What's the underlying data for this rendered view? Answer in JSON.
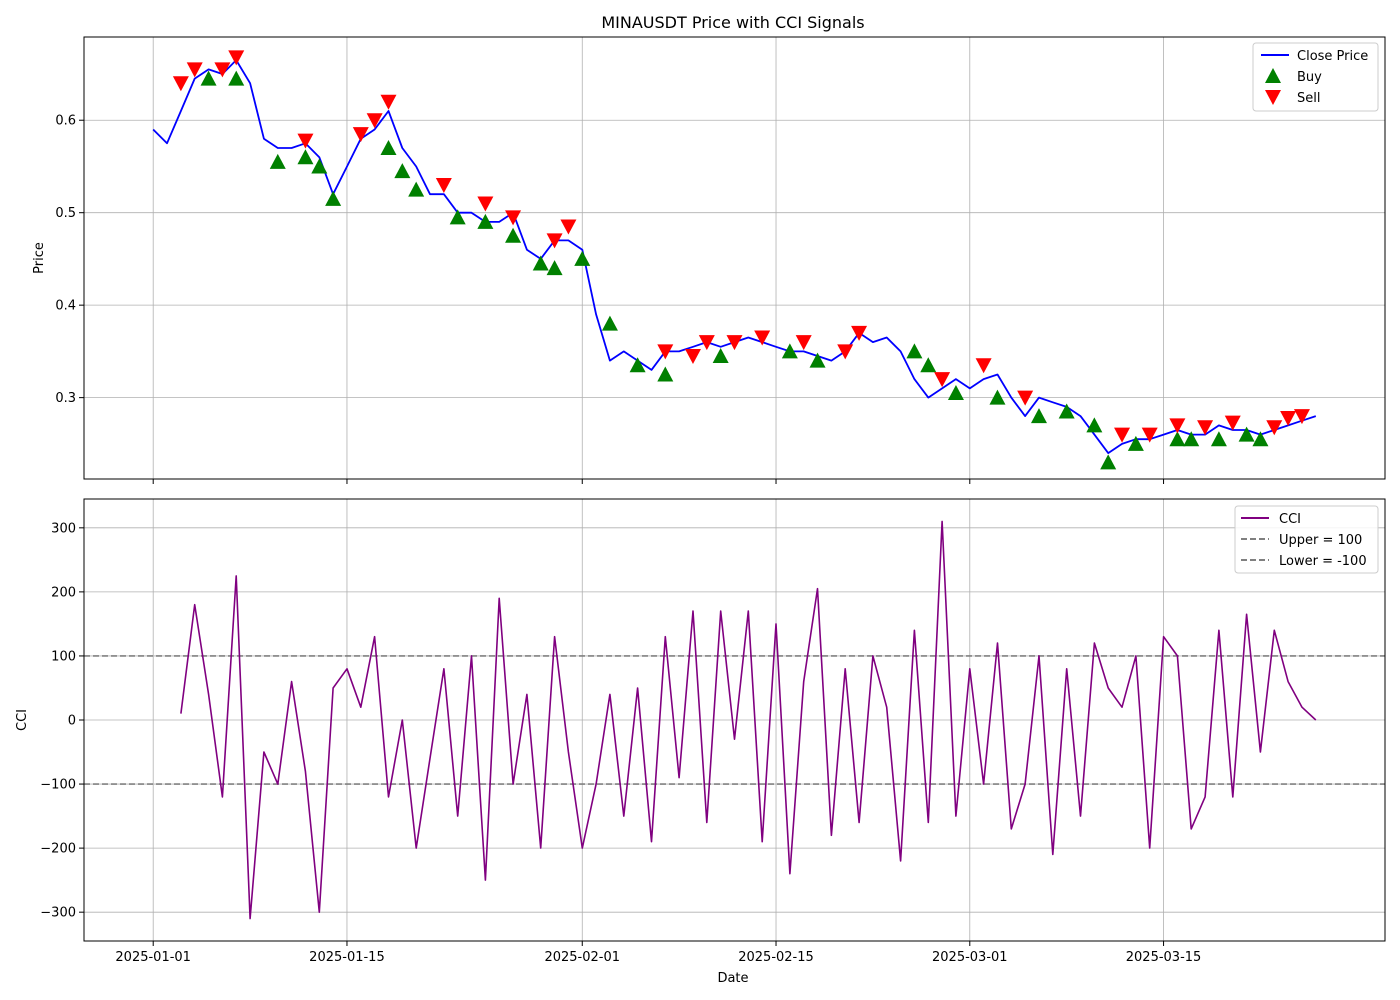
{
  "figure": {
    "title": "MINAUSDT Price with CCI Signals",
    "xlabel": "Date"
  },
  "colors": {
    "price": "#0000ff",
    "buy": "#008000",
    "sell": "#ff0000",
    "cci": "#800080",
    "threshold": "#808080",
    "grid": "#b0b0b0"
  },
  "chart_data": [
    {
      "type": "line",
      "title": "MINAUSDT Price with CCI Signals",
      "ylabel": "Price",
      "xlim": [
        "2024-12-27",
        "2025-03-31"
      ],
      "ylim": [
        0.212,
        0.69
      ],
      "x_ticks": [
        "2025-01-01",
        "2025-01-15",
        "2025-02-01",
        "2025-02-15",
        "2025-03-01",
        "2025-03-15"
      ],
      "y_ticks": [
        0.3,
        0.4,
        0.5,
        0.6
      ],
      "grid": true,
      "legend": "top-right",
      "legend_entries": [
        "Close Price",
        "Buy",
        "Sell"
      ],
      "series": [
        {
          "name": "Close Price",
          "style": "line",
          "x": [
            "2025-01-01",
            "2025-01-02",
            "2025-01-03",
            "2025-01-04",
            "2025-01-05",
            "2025-01-06",
            "2025-01-07",
            "2025-01-08",
            "2025-01-09",
            "2025-01-10",
            "2025-01-11",
            "2025-01-12",
            "2025-01-13",
            "2025-01-14",
            "2025-01-15",
            "2025-01-16",
            "2025-01-17",
            "2025-01-18",
            "2025-01-19",
            "2025-01-20",
            "2025-01-21",
            "2025-01-22",
            "2025-01-23",
            "2025-01-24",
            "2025-01-25",
            "2025-01-26",
            "2025-01-27",
            "2025-01-28",
            "2025-01-29",
            "2025-01-30",
            "2025-01-31",
            "2025-02-01",
            "2025-02-02",
            "2025-02-03",
            "2025-02-04",
            "2025-02-05",
            "2025-02-06",
            "2025-02-07",
            "2025-02-08",
            "2025-02-09",
            "2025-02-10",
            "2025-02-11",
            "2025-02-12",
            "2025-02-13",
            "2025-02-14",
            "2025-02-15",
            "2025-02-16",
            "2025-02-17",
            "2025-02-18",
            "2025-02-19",
            "2025-02-20",
            "2025-02-21",
            "2025-02-22",
            "2025-02-23",
            "2025-02-24",
            "2025-02-25",
            "2025-02-26",
            "2025-02-27",
            "2025-02-28",
            "2025-03-01",
            "2025-03-02",
            "2025-03-03",
            "2025-03-04",
            "2025-03-05",
            "2025-03-06",
            "2025-03-07",
            "2025-03-08",
            "2025-03-09",
            "2025-03-10",
            "2025-03-11",
            "2025-03-12",
            "2025-03-13",
            "2025-03-14",
            "2025-03-15",
            "2025-03-16",
            "2025-03-17",
            "2025-03-18",
            "2025-03-19",
            "2025-03-20",
            "2025-03-21",
            "2025-03-22",
            "2025-03-23",
            "2025-03-24",
            "2025-03-25",
            "2025-03-26"
          ],
          "values": [
            0.59,
            0.575,
            0.61,
            0.645,
            0.655,
            0.65,
            0.665,
            0.64,
            0.58,
            0.57,
            0.57,
            0.575,
            0.56,
            0.52,
            0.55,
            0.58,
            0.59,
            0.61,
            0.57,
            0.55,
            0.52,
            0.52,
            0.5,
            0.5,
            0.49,
            0.49,
            0.5,
            0.46,
            0.45,
            0.47,
            0.47,
            0.46,
            0.39,
            0.34,
            0.35,
            0.34,
            0.33,
            0.35,
            0.35,
            0.355,
            0.36,
            0.355,
            0.36,
            0.365,
            0.36,
            0.355,
            0.35,
            0.35,
            0.345,
            0.34,
            0.35,
            0.37,
            0.36,
            0.365,
            0.35,
            0.32,
            0.3,
            0.31,
            0.32,
            0.31,
            0.32,
            0.325,
            0.3,
            0.28,
            0.3,
            0.295,
            0.29,
            0.28,
            0.26,
            0.24,
            0.25,
            0.255,
            0.255,
            0.26,
            0.265,
            0.26,
            0.26,
            0.27,
            0.265,
            0.265,
            0.26,
            0.265,
            0.27,
            0.275,
            0.28
          ]
        },
        {
          "name": "Buy",
          "style": "marker-triangle-up",
          "x": [
            "2025-01-05",
            "2025-01-07",
            "2025-01-10",
            "2025-01-12",
            "2025-01-13",
            "2025-01-14",
            "2025-01-18",
            "2025-01-19",
            "2025-01-20",
            "2025-01-23",
            "2025-01-25",
            "2025-01-27",
            "2025-01-29",
            "2025-01-30",
            "2025-02-01",
            "2025-02-03",
            "2025-02-05",
            "2025-02-07",
            "2025-02-11",
            "2025-02-16",
            "2025-02-18",
            "2025-02-25",
            "2025-02-26",
            "2025-02-28",
            "2025-03-03",
            "2025-03-06",
            "2025-03-08",
            "2025-03-10",
            "2025-03-11",
            "2025-03-13",
            "2025-03-16",
            "2025-03-17",
            "2025-03-19",
            "2025-03-21",
            "2025-03-22"
          ],
          "values": [
            0.645,
            0.645,
            0.555,
            0.56,
            0.55,
            0.515,
            0.57,
            0.545,
            0.525,
            0.495,
            0.49,
            0.475,
            0.445,
            0.44,
            0.45,
            0.38,
            0.335,
            0.325,
            0.345,
            0.35,
            0.34,
            0.35,
            0.335,
            0.305,
            0.3,
            0.28,
            0.285,
            0.27,
            0.23,
            0.25,
            0.255,
            0.255,
            0.255,
            0.26,
            0.255
          ]
        },
        {
          "name": "Sell",
          "style": "marker-triangle-down",
          "x": [
            "2025-01-03",
            "2025-01-04",
            "2025-01-06",
            "2025-01-07",
            "2025-01-12",
            "2025-01-16",
            "2025-01-17",
            "2025-01-18",
            "2025-01-22",
            "2025-01-25",
            "2025-01-27",
            "2025-01-30",
            "2025-01-31",
            "2025-02-07",
            "2025-02-09",
            "2025-02-10",
            "2025-02-12",
            "2025-02-14",
            "2025-02-17",
            "2025-02-20",
            "2025-02-21",
            "2025-02-27",
            "2025-03-02",
            "2025-03-05",
            "2025-03-12",
            "2025-03-14",
            "2025-03-16",
            "2025-03-18",
            "2025-03-20",
            "2025-03-23",
            "2025-03-24",
            "2025-03-25"
          ],
          "values": [
            0.64,
            0.655,
            0.655,
            0.668,
            0.578,
            0.585,
            0.6,
            0.62,
            0.53,
            0.51,
            0.495,
            0.47,
            0.485,
            0.35,
            0.345,
            0.36,
            0.36,
            0.365,
            0.36,
            0.35,
            0.37,
            0.32,
            0.335,
            0.3,
            0.26,
            0.26,
            0.27,
            0.268,
            0.273,
            0.268,
            0.278,
            0.28
          ]
        }
      ]
    },
    {
      "type": "line",
      "ylabel": "CCI",
      "xlim": [
        "2024-12-27",
        "2025-03-31"
      ],
      "ylim": [
        -345,
        345
      ],
      "x_ticks": [
        "2025-01-01",
        "2025-01-15",
        "2025-02-01",
        "2025-02-15",
        "2025-03-01",
        "2025-03-15"
      ],
      "y_ticks": [
        -300,
        -200,
        -100,
        0,
        100,
        200,
        300
      ],
      "grid": true,
      "legend": "top-right",
      "legend_entries": [
        "CCI",
        "Upper = 100",
        "Lower = -100"
      ],
      "series": [
        {
          "name": "CCI",
          "style": "line",
          "x": [
            "2025-01-03",
            "2025-01-04",
            "2025-01-05",
            "2025-01-06",
            "2025-01-07",
            "2025-01-08",
            "2025-01-09",
            "2025-01-10",
            "2025-01-11",
            "2025-01-12",
            "2025-01-13",
            "2025-01-14",
            "2025-01-15",
            "2025-01-16",
            "2025-01-17",
            "2025-01-18",
            "2025-01-19",
            "2025-01-20",
            "2025-01-21",
            "2025-01-22",
            "2025-01-23",
            "2025-01-24",
            "2025-01-25",
            "2025-01-26",
            "2025-01-27",
            "2025-01-28",
            "2025-01-29",
            "2025-01-30",
            "2025-01-31",
            "2025-02-01",
            "2025-02-02",
            "2025-02-03",
            "2025-02-04",
            "2025-02-05",
            "2025-02-06",
            "2025-02-07",
            "2025-02-08",
            "2025-02-09",
            "2025-02-10",
            "2025-02-11",
            "2025-02-12",
            "2025-02-13",
            "2025-02-14",
            "2025-02-15",
            "2025-02-16",
            "2025-02-17",
            "2025-02-18",
            "2025-02-19",
            "2025-02-20",
            "2025-02-21",
            "2025-02-22",
            "2025-02-23",
            "2025-02-24",
            "2025-02-25",
            "2025-02-26",
            "2025-02-27",
            "2025-02-28",
            "2025-03-01",
            "2025-03-02",
            "2025-03-03",
            "2025-03-04",
            "2025-03-05",
            "2025-03-06",
            "2025-03-07",
            "2025-03-08",
            "2025-03-09",
            "2025-03-10",
            "2025-03-11",
            "2025-03-12",
            "2025-03-13",
            "2025-03-14",
            "2025-03-15",
            "2025-03-16",
            "2025-03-17",
            "2025-03-18",
            "2025-03-19",
            "2025-03-20",
            "2025-03-21",
            "2025-03-22",
            "2025-03-23",
            "2025-03-24",
            "2025-03-25",
            "2025-03-26"
          ],
          "values": [
            10,
            180,
            40,
            -120,
            225,
            -310,
            -50,
            -100,
            60,
            -80,
            -300,
            50,
            80,
            20,
            130,
            -120,
            0,
            -200,
            -60,
            80,
            -150,
            100,
            -250,
            190,
            -100,
            40,
            -200,
            130,
            -50,
            -200,
            -100,
            40,
            -150,
            50,
            -190,
            130,
            -90,
            170,
            -160,
            170,
            -30,
            170,
            -190,
            150,
            -240,
            60,
            205,
            -180,
            80,
            -160,
            100,
            20,
            -220,
            140,
            -160,
            310,
            -150,
            80,
            -100,
            120,
            -170,
            -100,
            100,
            -210,
            80,
            -150,
            120,
            50,
            20,
            100,
            -200,
            130,
            100,
            -170,
            -120,
            140,
            -120,
            165,
            -50,
            140,
            60,
            20,
            0
          ]
        },
        {
          "name": "Upper = 100",
          "style": "dashed",
          "value": 100
        },
        {
          "name": "Lower = -100",
          "style": "dashed",
          "value": -100
        }
      ]
    }
  ]
}
